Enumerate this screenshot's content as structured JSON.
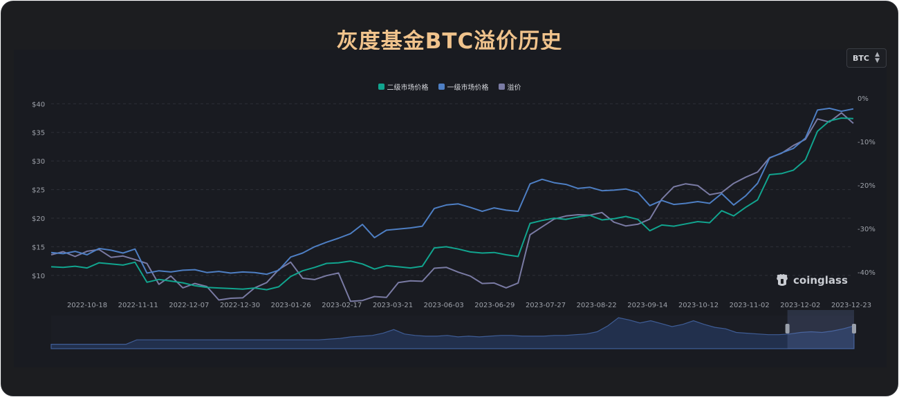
{
  "title": "灰度基金BTC溢价历史",
  "selector": {
    "value": "BTC"
  },
  "brand": "coinglass",
  "colors": {
    "secondary": "#11a58f",
    "primary": "#4e7fc4",
    "premium": "#7a7ba4",
    "title": "#f0c38c"
  },
  "chart_data": {
    "type": "line",
    "legend": [
      {
        "name": "二级市场价格",
        "color": "#11a58f"
      },
      {
        "name": "一级市场价格",
        "color": "#4e7fc4"
      },
      {
        "name": "溢价",
        "color": "#7a7ba4"
      }
    ],
    "legend_position": "top-center",
    "x_ticks": [
      "2022-10-18",
      "2022-11-11",
      "2022-12-07",
      "2022-12-30",
      "2023-01-26",
      "2023-02-17",
      "2023-03-21",
      "2023-06-03",
      "2023-06-29",
      "2023-07-27",
      "2023-08-22",
      "2023-09-14",
      "2023-10-12",
      "2023-11-02",
      "2023-12-02",
      "2023-12-23"
    ],
    "y_left_ticks": [
      "$10",
      "$15",
      "$20",
      "$25",
      "$30",
      "$35",
      "$40"
    ],
    "y_left_values": [
      10,
      15,
      20,
      25,
      30,
      35,
      40
    ],
    "y_left_range": [
      6,
      41
    ],
    "y_right_ticks": [
      "0%",
      "-10%",
      "-20%",
      "-30%",
      "-40%"
    ],
    "y_right_values": [
      0,
      -10,
      -20,
      -30,
      -40
    ],
    "y_right_range": [
      -46,
      0
    ],
    "grid": "horizontal-dashed",
    "points_per_tick": 4,
    "series": [
      {
        "name": "二级市场价格",
        "axis": "left",
        "values": [
          11.5,
          11.4,
          11.6,
          11.3,
          12.2,
          12.0,
          11.8,
          12.3,
          8.8,
          9.3,
          9.0,
          8.7,
          8.2,
          7.9,
          7.8,
          7.7,
          7.6,
          7.8,
          7.5,
          8.0,
          9.8,
          10.8,
          11.4,
          12.1,
          12.2,
          12.5,
          12.0,
          11.1,
          11.7,
          11.5,
          11.3,
          11.6,
          14.8,
          15.0,
          14.6,
          14.1,
          13.9,
          14.0,
          13.6,
          13.3,
          19.1,
          19.6,
          20.0,
          19.8,
          20.2,
          20.5,
          19.7,
          19.9,
          20.3,
          19.8,
          17.8,
          18.8,
          18.6,
          19.0,
          19.4,
          19.2,
          21.3,
          20.4,
          21.9,
          23.2,
          27.6,
          27.8,
          28.4,
          30.2,
          35.2,
          37.0,
          37.5,
          37.4
        ]
      },
      {
        "name": "一级市场价格",
        "axis": "left",
        "values": [
          14.0,
          13.8,
          14.2,
          13.6,
          14.7,
          14.4,
          13.9,
          14.6,
          10.4,
          10.8,
          10.6,
          10.9,
          11.0,
          10.5,
          10.7,
          10.4,
          10.6,
          10.5,
          10.2,
          10.9,
          13.2,
          13.9,
          15.0,
          15.8,
          16.5,
          17.3,
          18.9,
          16.6,
          17.9,
          18.1,
          18.3,
          18.6,
          21.7,
          22.3,
          22.5,
          21.9,
          21.2,
          21.8,
          21.4,
          21.2,
          26.0,
          26.8,
          26.2,
          25.9,
          25.2,
          25.4,
          24.8,
          24.9,
          25.1,
          24.5,
          22.2,
          23.1,
          22.4,
          22.6,
          22.9,
          22.6,
          24.3,
          22.3,
          23.9,
          26.1,
          30.5,
          31.4,
          32.2,
          34.0,
          38.9,
          39.2,
          38.7,
          39.1
        ]
      },
      {
        "name": "溢价",
        "axis": "right",
        "values": [
          -36.0,
          -35.3,
          -36.4,
          -35.2,
          -34.8,
          -36.6,
          -36.3,
          -37.1,
          -38.0,
          -42.8,
          -40.9,
          -43.6,
          -42.6,
          -43.3,
          -46.4,
          -46.0,
          -45.9,
          -43.6,
          -42.4,
          -39.4,
          -37.7,
          -41.4,
          -41.7,
          -40.8,
          -40.2,
          -46.7,
          -46.5,
          -45.6,
          -45.8,
          -42.4,
          -42.0,
          -42.1,
          -39.1,
          -38.9,
          -40.0,
          -40.9,
          -42.6,
          -42.5,
          -43.6,
          -42.5,
          -31.4,
          -29.6,
          -27.8,
          -27.1,
          -26.8,
          -26.9,
          -26.3,
          -28.5,
          -29.4,
          -29.0,
          -27.8,
          -23.2,
          -20.4,
          -19.7,
          -20.1,
          -22.2,
          -21.7,
          -19.6,
          -18.2,
          -17.0,
          -13.7,
          -12.7,
          -10.9,
          -9.5,
          -4.8,
          -5.5,
          -3.4,
          -5.8
        ]
      }
    ],
    "navigator": {
      "values": [
        6,
        6,
        6,
        6,
        6,
        6,
        6,
        6,
        12,
        12,
        12,
        12,
        12,
        12,
        12,
        12,
        12,
        12,
        12,
        12,
        12,
        12,
        12,
        12,
        12,
        12,
        13,
        14,
        16,
        17,
        18,
        21,
        26,
        20,
        18,
        17,
        17,
        18,
        16,
        17,
        16,
        17,
        18,
        18,
        17,
        17,
        17,
        18,
        18,
        19,
        20,
        23,
        31,
        42,
        39,
        35,
        38,
        34,
        30,
        33,
        38,
        33,
        29,
        27,
        22,
        21,
        20,
        19,
        19,
        20,
        22,
        23,
        22,
        24,
        27,
        31
      ],
      "range": [
        0,
        45
      ],
      "selection": [
        0.917,
        1.0
      ]
    }
  }
}
